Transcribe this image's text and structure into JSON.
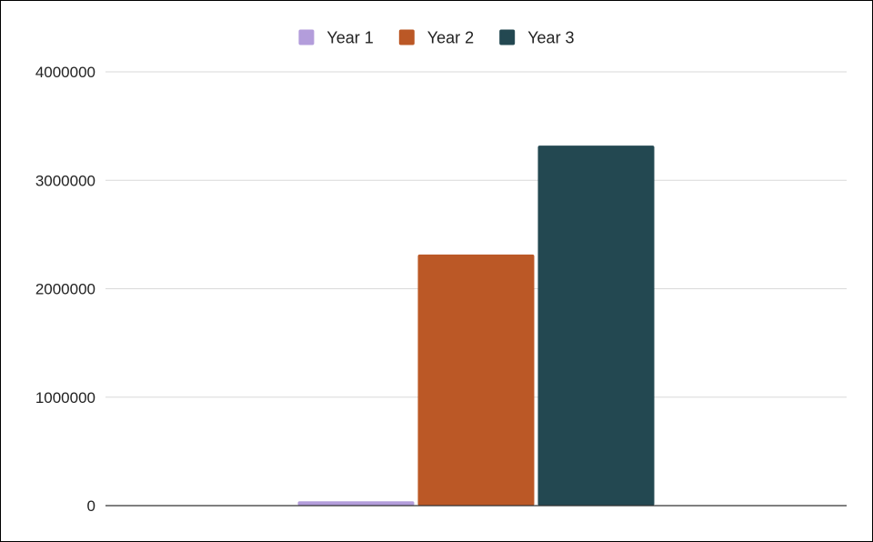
{
  "chart_data": {
    "type": "bar",
    "categories": [
      ""
    ],
    "series": [
      {
        "name": "Year 1",
        "color": "#b39ddb",
        "values": [
          40000
        ]
      },
      {
        "name": "Year 2",
        "color": "#bb5826",
        "values": [
          2315000
        ]
      },
      {
        "name": "Year 3",
        "color": "#234851",
        "values": [
          3320000
        ]
      }
    ],
    "title": "",
    "xlabel": "",
    "ylabel": "",
    "ylim": [
      0,
      4000000
    ],
    "yticks": [
      0,
      1000000,
      2000000,
      3000000,
      4000000
    ],
    "ytick_labels": [
      "0",
      "1000000",
      "2000000",
      "3000000",
      "4000000"
    ],
    "grid": true,
    "legend_position": "top-center"
  }
}
